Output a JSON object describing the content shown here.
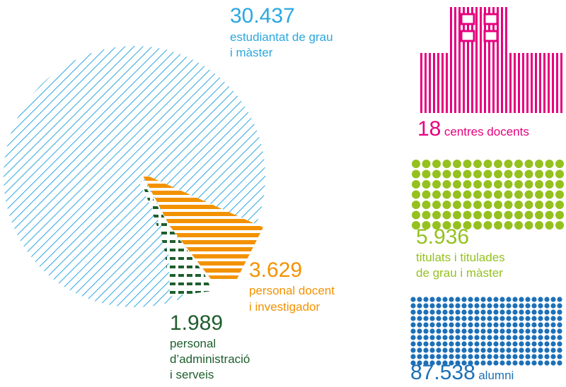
{
  "stats": [
    {
      "number": "30.437",
      "label": [
        "estudiantat de grau",
        "i màster"
      ]
    },
    {
      "number": "3.629",
      "label": [
        "personal docent",
        "i investigador"
      ]
    },
    {
      "number": "1.989",
      "label": [
        "personal",
        "d’administració",
        "i serveis"
      ]
    },
    {
      "number": "18",
      "label": [
        "centres docents"
      ]
    },
    {
      "number": "5.936",
      "label": [
        "titulats i titulades",
        "de grau i màster"
      ]
    },
    {
      "number": "87.538",
      "label": [
        "alumni"
      ]
    }
  ]
}
